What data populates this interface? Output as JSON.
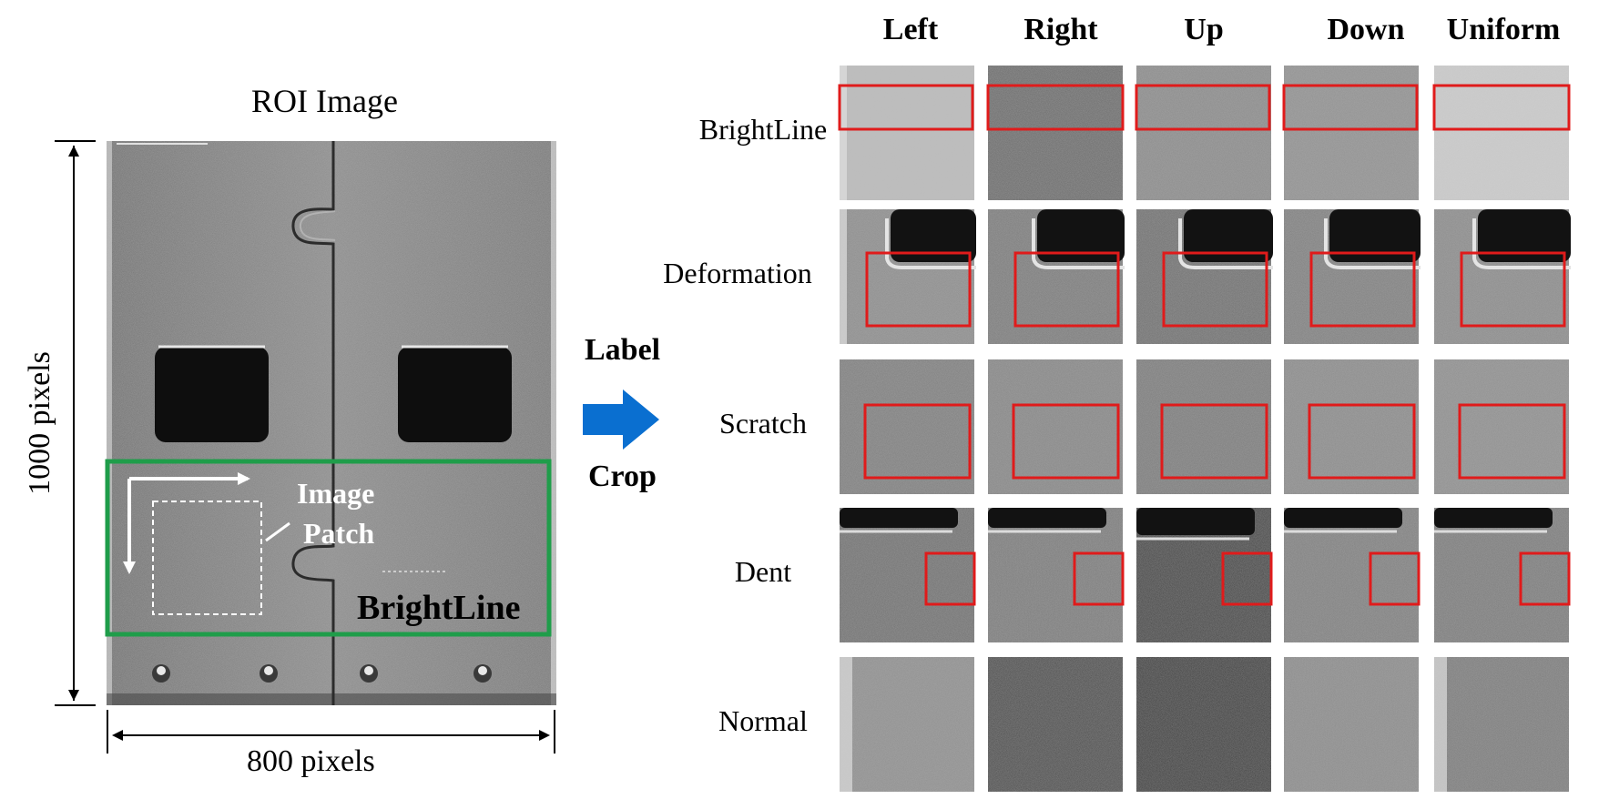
{
  "roi": {
    "title": "ROI Image",
    "height_label": "1000 pixels",
    "width_label": "800 pixels",
    "patch_label_line1": "Image",
    "patch_label_line2": "Patch",
    "region_label": "BrightLine"
  },
  "process": {
    "label_text": "Label",
    "crop_text": "Crop",
    "arrow_color": "#0a6fd0"
  },
  "grid": {
    "columns": [
      "Left",
      "Right",
      "Up",
      "Down",
      "Uniform"
    ],
    "rows": [
      "BrightLine",
      "Deformation",
      "Scratch",
      "Dent",
      "Normal"
    ]
  },
  "colors": {
    "roi_box": "#1f9d4a",
    "defect_box": "#e01b1b"
  }
}
